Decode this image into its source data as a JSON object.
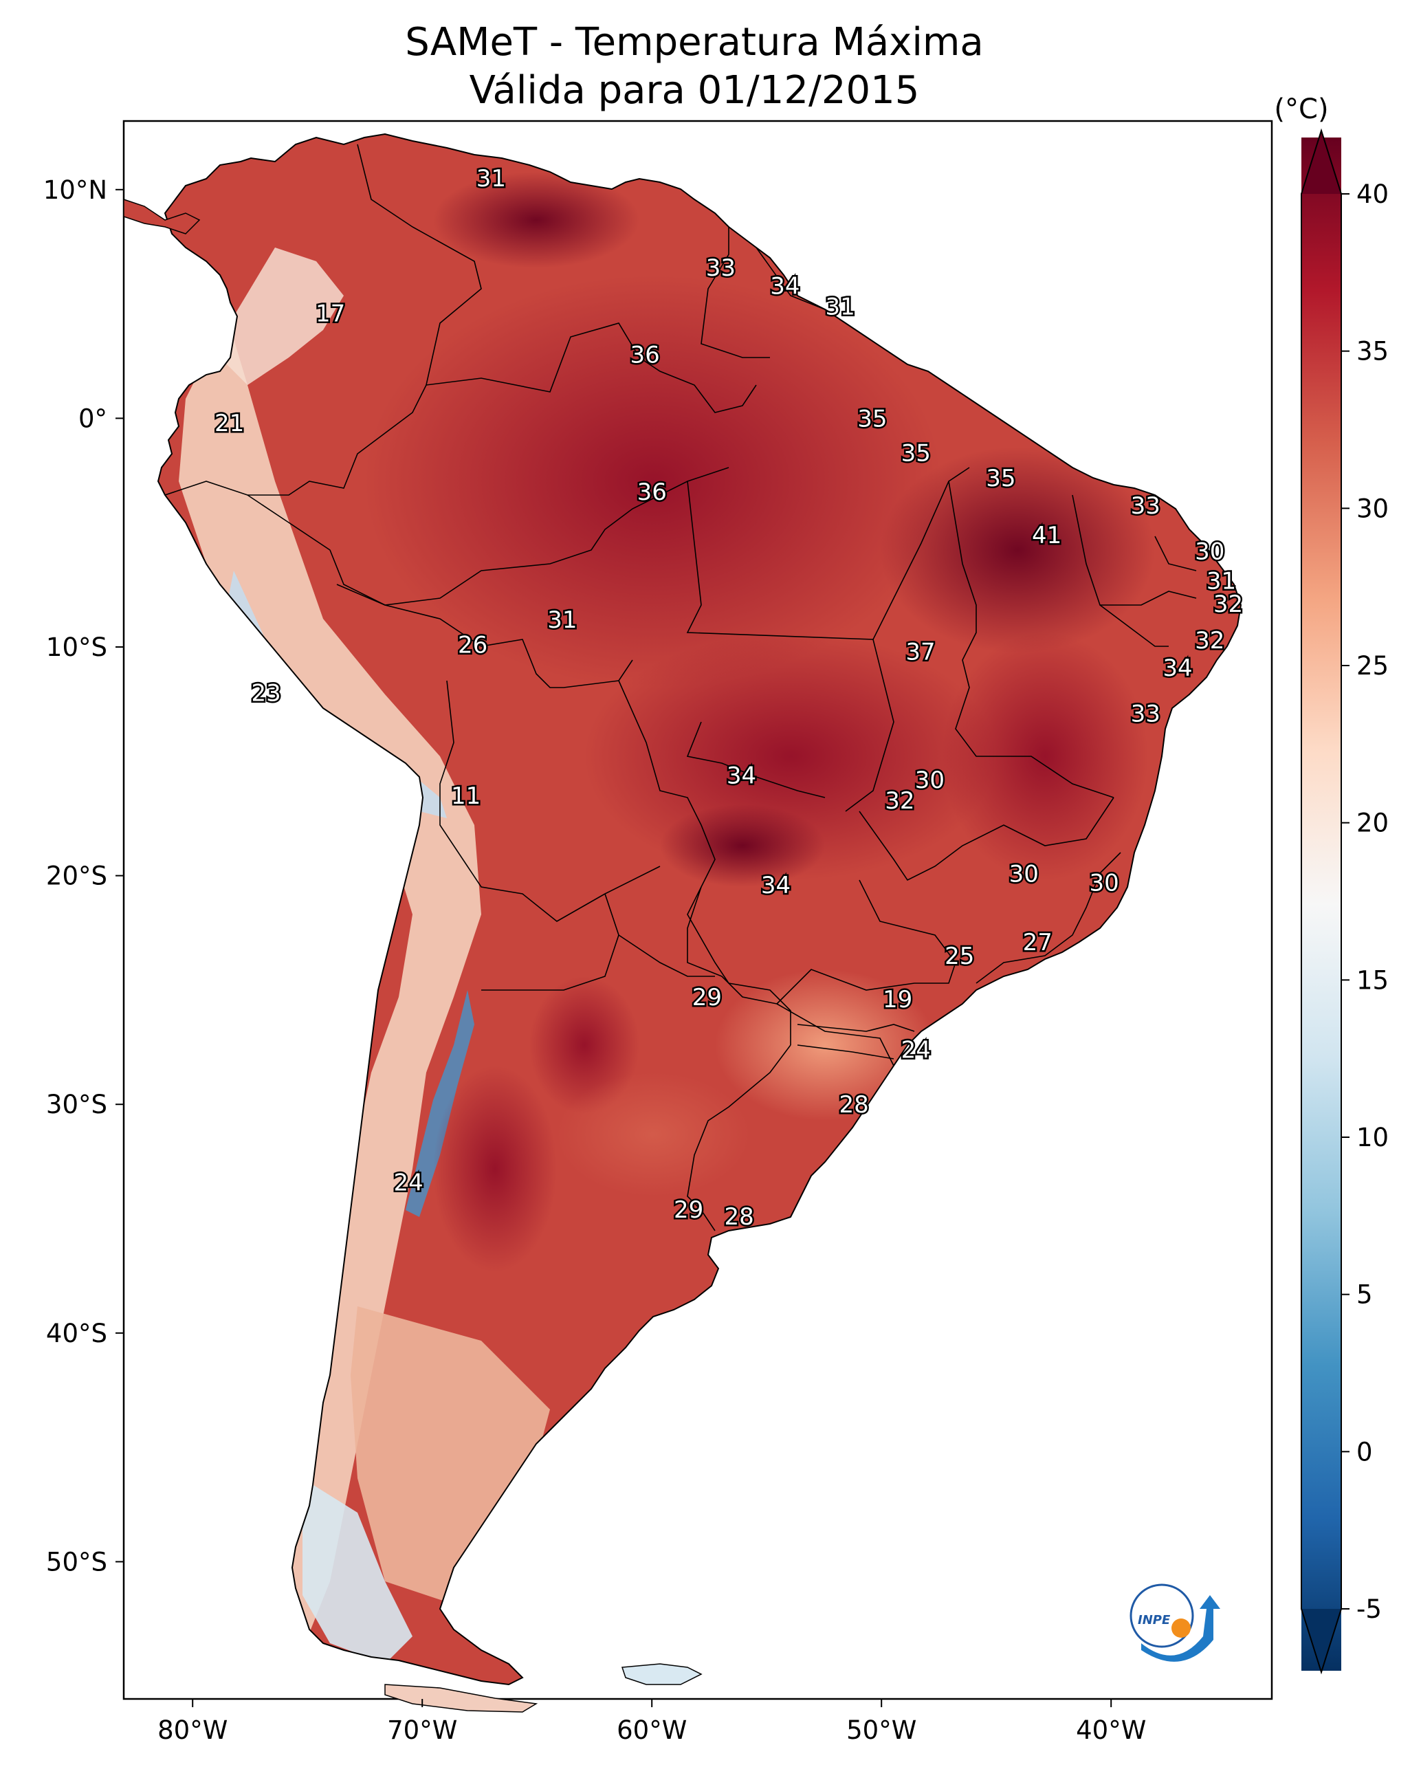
{
  "title": {
    "line1": "SAMeT - Temperatura Máxima",
    "line2": "Válida para 01/12/2015"
  },
  "colorbar": {
    "unit": "(°C)",
    "min": -7,
    "max": 42,
    "ticks": [
      {
        "value": 40,
        "label": "40"
      },
      {
        "value": 35,
        "label": "35"
      },
      {
        "value": 30,
        "label": "30"
      },
      {
        "value": 25,
        "label": "25"
      },
      {
        "value": 20,
        "label": "20"
      },
      {
        "value": 15,
        "label": "15"
      },
      {
        "value": 10,
        "label": "10"
      },
      {
        "value": 5,
        "label": "5"
      },
      {
        "value": 0,
        "label": "0"
      },
      {
        "value": -5,
        "label": "-5"
      }
    ],
    "colors": [
      "#053061",
      "#2166ac",
      "#4393c3",
      "#92c5de",
      "#d1e5f0",
      "#f7f7f7",
      "#fddbc7",
      "#f4a582",
      "#d6604d",
      "#b2182b",
      "#67001f"
    ]
  },
  "axes": {
    "lon_range": [
      -83,
      -33
    ],
    "lat_range": [
      -56,
      13
    ],
    "x_ticks": [
      {
        "lon": -80,
        "label": "80°W"
      },
      {
        "lon": -70,
        "label": "70°W"
      },
      {
        "lon": -60,
        "label": "60°W"
      },
      {
        "lon": -50,
        "label": "50°W"
      },
      {
        "lon": -40,
        "label": "40°W"
      }
    ],
    "y_ticks": [
      {
        "lat": 10,
        "label": "10°N"
      },
      {
        "lat": 0,
        "label": "0°"
      },
      {
        "lat": -10,
        "label": "10°S"
      },
      {
        "lat": -20,
        "label": "20°S"
      },
      {
        "lat": -30,
        "label": "30°S"
      },
      {
        "lat": -40,
        "label": "40°S"
      },
      {
        "lat": -50,
        "label": "50°S"
      }
    ]
  },
  "city_values": [
    {
      "lon": -67.0,
      "lat": 10.5,
      "value": "31"
    },
    {
      "lon": -74.0,
      "lat": 4.6,
      "value": "17"
    },
    {
      "lon": -57.0,
      "lat": 6.6,
      "value": "33"
    },
    {
      "lon": -54.2,
      "lat": 5.8,
      "value": "34"
    },
    {
      "lon": -51.8,
      "lat": 4.9,
      "value": "31"
    },
    {
      "lon": -60.3,
      "lat": 2.8,
      "value": "36"
    },
    {
      "lon": -78.4,
      "lat": -0.2,
      "value": "21"
    },
    {
      "lon": -50.4,
      "lat": 0.0,
      "value": "35"
    },
    {
      "lon": -48.5,
      "lat": -1.5,
      "value": "35"
    },
    {
      "lon": -60.0,
      "lat": -3.2,
      "value": "36"
    },
    {
      "lon": -44.8,
      "lat": -2.6,
      "value": "35"
    },
    {
      "lon": -38.5,
      "lat": -3.8,
      "value": "33"
    },
    {
      "lon": -42.8,
      "lat": -5.1,
      "value": "41"
    },
    {
      "lon": -35.7,
      "lat": -5.8,
      "value": "30"
    },
    {
      "lon": -35.2,
      "lat": -7.1,
      "value": "31"
    },
    {
      "lon": -34.9,
      "lat": -8.1,
      "value": "32"
    },
    {
      "lon": -63.9,
      "lat": -8.8,
      "value": "31"
    },
    {
      "lon": -67.8,
      "lat": -9.9,
      "value": "26"
    },
    {
      "lon": -35.7,
      "lat": -9.7,
      "value": "32"
    },
    {
      "lon": -48.3,
      "lat": -10.2,
      "value": "37"
    },
    {
      "lon": -37.1,
      "lat": -10.9,
      "value": "34"
    },
    {
      "lon": -38.5,
      "lat": -12.9,
      "value": "33"
    },
    {
      "lon": -76.8,
      "lat": -12.0,
      "value": "23"
    },
    {
      "lon": -68.1,
      "lat": -16.5,
      "value": "11"
    },
    {
      "lon": -56.1,
      "lat": -15.6,
      "value": "34"
    },
    {
      "lon": -49.2,
      "lat": -16.7,
      "value": "32"
    },
    {
      "lon": -47.9,
      "lat": -15.8,
      "value": "30"
    },
    {
      "lon": -43.8,
      "lat": -19.9,
      "value": "30"
    },
    {
      "lon": -40.3,
      "lat": -20.3,
      "value": "30"
    },
    {
      "lon": -54.6,
      "lat": -20.4,
      "value": "34"
    },
    {
      "lon": -43.2,
      "lat": -22.9,
      "value": "27"
    },
    {
      "lon": -46.6,
      "lat": -23.5,
      "value": "25"
    },
    {
      "lon": -57.6,
      "lat": -25.3,
      "value": "29"
    },
    {
      "lon": -49.3,
      "lat": -25.4,
      "value": "19"
    },
    {
      "lon": -48.5,
      "lat": -27.6,
      "value": "24"
    },
    {
      "lon": -51.2,
      "lat": -30.0,
      "value": "28"
    },
    {
      "lon": -70.6,
      "lat": -33.4,
      "value": "24"
    },
    {
      "lon": -58.4,
      "lat": -34.6,
      "value": "29"
    },
    {
      "lon": -56.2,
      "lat": -34.9,
      "value": "28"
    }
  ],
  "logo": {
    "text": "INPE"
  }
}
